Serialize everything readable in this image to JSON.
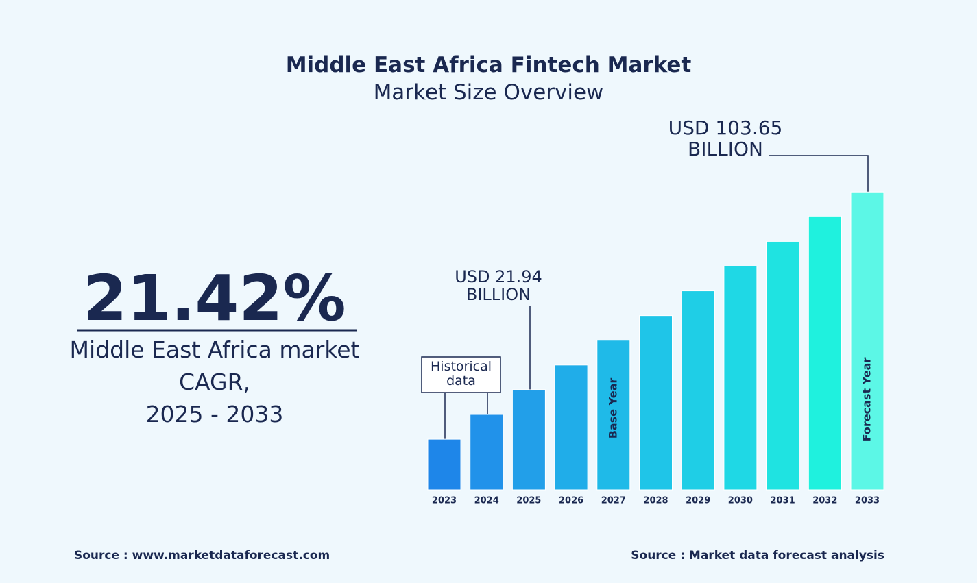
{
  "chart_data": {
    "type": "bar",
    "title": "Middle East Africa Fintech Market",
    "subtitle": "Market Size Overview",
    "categories": [
      "2023",
      "2024",
      "2025",
      "2026",
      "2027",
      "2028",
      "2029",
      "2030",
      "2031",
      "2032",
      "2033"
    ],
    "values": [
      14.88,
      18.07,
      21.94,
      26.64,
      32.35,
      39.28,
      47.69,
      57.91,
      70.31,
      85.37,
      103.65
    ],
    "value_labels": [
      null,
      null,
      "USD 21.94 BILLION",
      null,
      null,
      null,
      null,
      null,
      null,
      null,
      "USD 103.65 BILLION"
    ],
    "colors": [
      "#1e86e9",
      "#2192ea",
      "#229fe9",
      "#20ade9",
      "#1fbae8",
      "#1fc5e8",
      "#1fcee6",
      "#1fd8e5",
      "#1fe3e1",
      "#1ff1de",
      "#5cf7e6"
    ],
    "log_scale": true,
    "ylim": [
      10,
      120
    ],
    "historical_label": "Historical data",
    "base_year_label": "Base Year",
    "forecast_year_label": "Forecast Year"
  },
  "summary": {
    "cagr": "21.42%",
    "label_lines": [
      "Middle East Africa market",
      "CAGR,",
      "2025 - 2033"
    ]
  },
  "footer": {
    "source_left": "Source : www.marketdataforecast.com",
    "source_right": "Source : Market data forecast analysis"
  }
}
